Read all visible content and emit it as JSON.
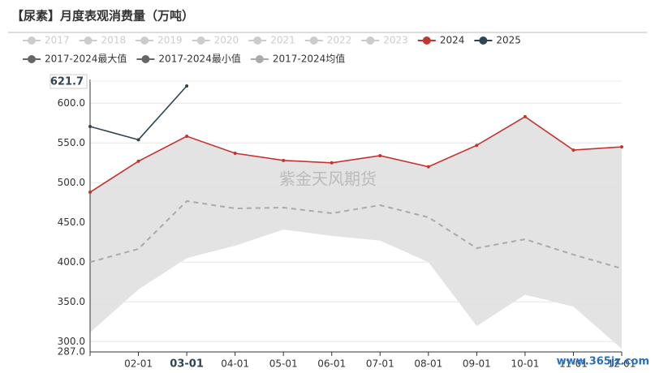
{
  "chart_data": {
    "type": "line",
    "title": "【尿素】月度表观消费量（万吨）",
    "categories": [
      null,
      "02-01",
      "03-01",
      "04-01",
      "05-01",
      "06-01",
      "07-01",
      "08-01",
      "09-01",
      "10-01",
      "11-01",
      "12-01"
    ],
    "hidden_series": [
      "2017",
      "2018",
      "2019",
      "2020",
      "2021",
      "2022",
      "2023"
    ],
    "hidden_color": "#cccccc",
    "series": [
      {
        "name": "2024",
        "color": "#c23531",
        "values": [
          488,
          527,
          558.4,
          537,
          528,
          525,
          534,
          520,
          547,
          583,
          541,
          545
        ]
      },
      {
        "name": "2025",
        "color": "#2f4554",
        "values": [
          570.7,
          554,
          621.7,
          null,
          null,
          null,
          null,
          null,
          null,
          null,
          null,
          null
        ]
      },
      {
        "name": "2017-2024最大值",
        "color": "#666666",
        "role": "band-top",
        "values": [
          488,
          527,
          558.4,
          537,
          528,
          525,
          534,
          520,
          547,
          583,
          541,
          545
        ]
      },
      {
        "name": "2017-2024最小值",
        "color": "#666666",
        "role": "band-bottom",
        "values": [
          311.5,
          365.6,
          405,
          420.7,
          441,
          433,
          427,
          400,
          319.5,
          359,
          344,
          291
        ]
      },
      {
        "name": "2017-2024均值",
        "color": "#aaaaaa",
        "dashed": true,
        "values": [
          400,
          416.6,
          476.8,
          467.6,
          468.6,
          461.5,
          471.7,
          456.4,
          417.6,
          428.8,
          409.4,
          392
        ]
      }
    ],
    "band_color": "#e3e3e3",
    "ylim": [
      287,
      621.7
    ],
    "yticks": [
      {
        "value": 287,
        "label": "287.0"
      },
      {
        "value": 300,
        "label": "300.0"
      },
      {
        "value": 350,
        "label": "350.0"
      },
      {
        "value": 400,
        "label": "400.0"
      },
      {
        "value": 450,
        "label": "450.0"
      },
      {
        "value": 500,
        "label": "500.0"
      },
      {
        "value": 550,
        "label": "550.0"
      },
      {
        "value": 600,
        "label": "600.0"
      }
    ],
    "grid": true,
    "pointer_index": 2,
    "pointer_value": 621.7,
    "watermark": "紫金天风期货",
    "site_mark": "www.365jz.com"
  }
}
